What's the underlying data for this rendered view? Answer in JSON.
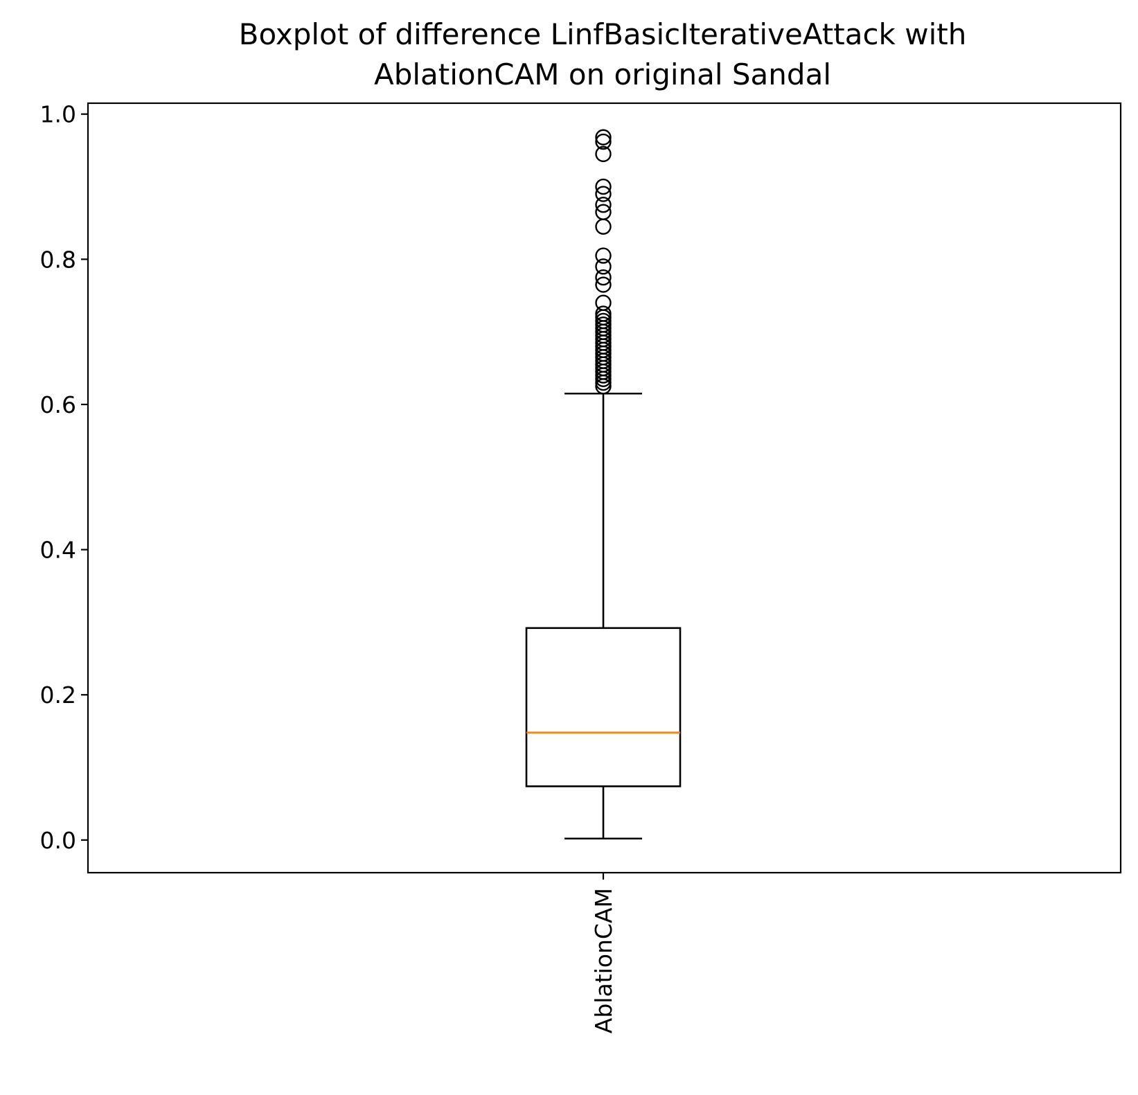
{
  "chart_data": {
    "type": "boxplot",
    "title_lines": [
      "Boxplot of difference LinfBasicIterativeAttack with",
      "AblationCAM on original Sandal"
    ],
    "xlabel": "",
    "ylabel": "",
    "categories": [
      "AblationCAM"
    ],
    "ylim": [
      -0.045,
      1.015
    ],
    "yticks": [
      0.0,
      0.2,
      0.4,
      0.6,
      0.8,
      1.0
    ],
    "ytick_labels": [
      "0.0",
      "0.2",
      "0.4",
      "0.6",
      "0.8",
      "1.0"
    ],
    "grid": false,
    "boxes": [
      {
        "category": "AblationCAM",
        "whisker_low": 0.002,
        "q1": 0.074,
        "median": 0.148,
        "q3": 0.292,
        "whisker_high": 0.615,
        "outliers": [
          0.625,
          0.63,
          0.635,
          0.64,
          0.645,
          0.65,
          0.655,
          0.66,
          0.665,
          0.67,
          0.675,
          0.68,
          0.685,
          0.69,
          0.695,
          0.7,
          0.705,
          0.71,
          0.715,
          0.72,
          0.725,
          0.74,
          0.765,
          0.775,
          0.79,
          0.805,
          0.845,
          0.865,
          0.875,
          0.89,
          0.9,
          0.945,
          0.962,
          0.968
        ]
      }
    ],
    "colors": {
      "box": "#000000",
      "median": "#ff7f0e",
      "outlier": "#000000"
    }
  }
}
